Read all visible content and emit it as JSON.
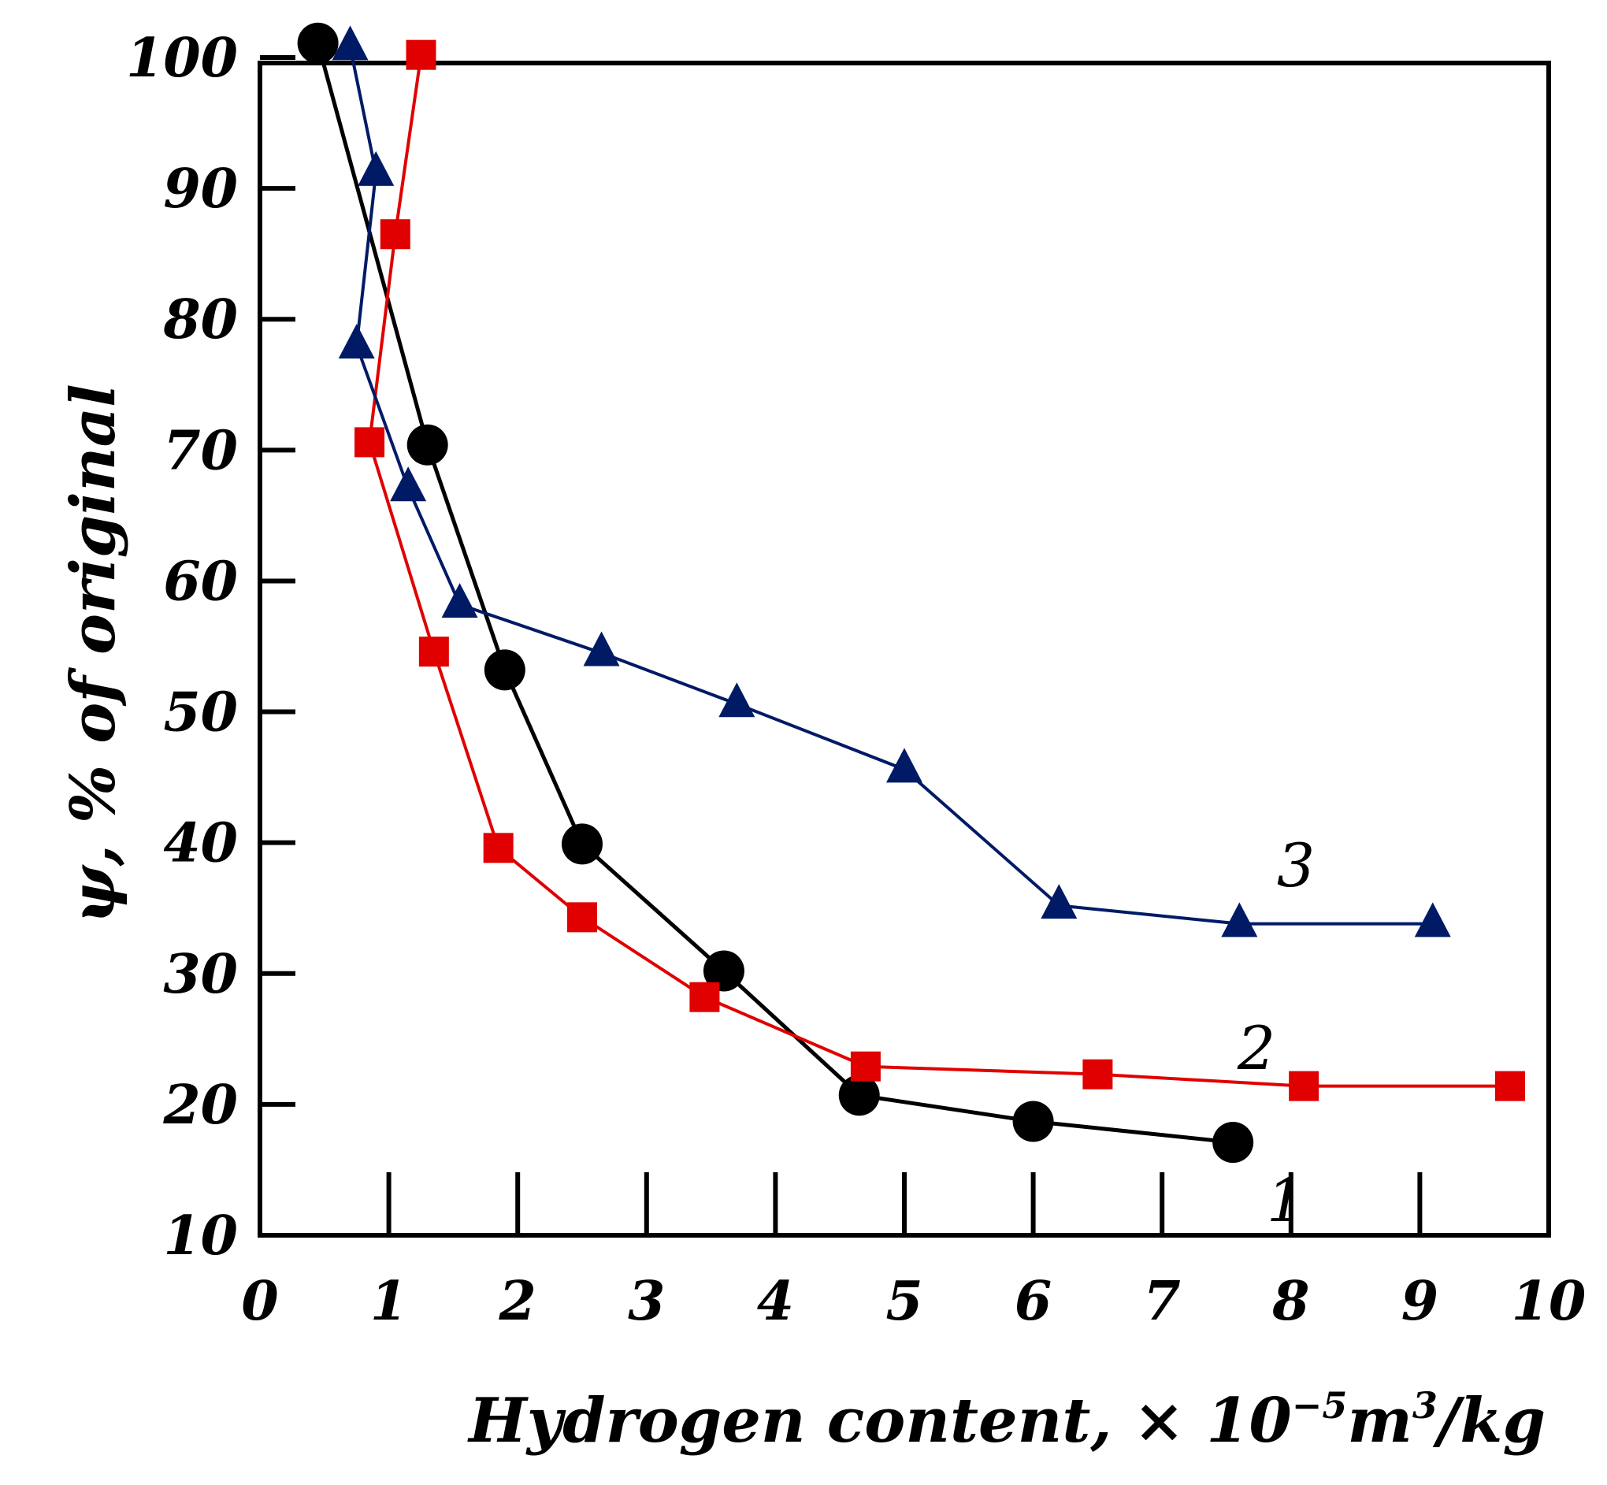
{
  "chart_data": {
    "type": "line",
    "title": "",
    "xlabel": "Hydrogen content, × 10",
    "xlabel_exponent": "−5",
    "xlabel_unit_m": "m",
    "xlabel_unit_exp": "3",
    "xlabel_unit_rest": "/kg",
    "ylabel": "ψ, % of original",
    "xlim": [
      0,
      10
    ],
    "ylim": [
      10,
      100
    ],
    "x_ticks": [
      "0",
      "1",
      "2",
      "3",
      "4",
      "5",
      "6",
      "7",
      "8",
      "9",
      "10"
    ],
    "y_ticks": [
      "10",
      "20",
      "30",
      "40",
      "50",
      "60",
      "70",
      "80",
      "90",
      "100"
    ],
    "grid": false,
    "series": [
      {
        "name": "1",
        "marker": "circle",
        "color": "#000000",
        "x": [
          0.45,
          1.3,
          1.9,
          2.5,
          3.6,
          4.65,
          6.0,
          7.55
        ],
        "y": [
          101.1,
          70.4,
          53.2,
          39.9,
          30.2,
          20.7,
          18.7,
          17.1
        ]
      },
      {
        "name": "2",
        "marker": "square",
        "color": "#e00000",
        "x": [
          1.25,
          1.05,
          0.85,
          1.35,
          1.85,
          2.5,
          3.45,
          4.7,
          6.5,
          8.1,
          9.7
        ],
        "y": [
          100.2,
          86.5,
          70.6,
          54.6,
          39.6,
          34.3,
          28.2,
          22.9,
          22.3,
          21.4,
          21.4
        ]
      },
      {
        "name": "3",
        "marker": "triangle",
        "color": "#001a66",
        "x": [
          0.7,
          0.9,
          0.75,
          1.15,
          1.55,
          2.65,
          3.7,
          5.0,
          6.2,
          7.6,
          9.1
        ],
        "y": [
          100.8,
          91.2,
          78.0,
          67.1,
          58.2,
          54.5,
          50.6,
          45.6,
          35.2,
          33.8,
          33.8
        ]
      }
    ]
  }
}
